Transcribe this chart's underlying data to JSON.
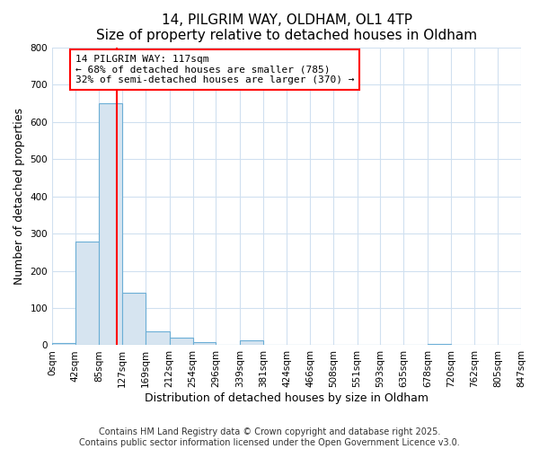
{
  "title1": "14, PILGRIM WAY, OLDHAM, OL1 4TP",
  "title2": "Size of property relative to detached houses in Oldham",
  "xlabel": "Distribution of detached houses by size in Oldham",
  "ylabel": "Number of detached properties",
  "bin_edges": [
    0,
    42,
    85,
    127,
    169,
    212,
    254,
    296,
    339,
    381,
    424,
    466,
    508,
    551,
    593,
    635,
    678,
    720,
    762,
    805,
    847
  ],
  "bin_labels": [
    "0sqm",
    "42sqm",
    "85sqm",
    "127sqm",
    "169sqm",
    "212sqm",
    "254sqm",
    "296sqm",
    "339sqm",
    "381sqm",
    "424sqm",
    "466sqm",
    "508sqm",
    "551sqm",
    "593sqm",
    "635sqm",
    "678sqm",
    "720sqm",
    "762sqm",
    "805sqm",
    "847sqm"
  ],
  "bar_heights": [
    5,
    278,
    650,
    142,
    37,
    20,
    8,
    0,
    12,
    0,
    0,
    0,
    0,
    0,
    0,
    0,
    3,
    0,
    0,
    0
  ],
  "bar_color": "#d6e4f0",
  "bar_edgecolor": "#6baed6",
  "vline_x": 117,
  "vline_color": "red",
  "ylim": [
    0,
    800
  ],
  "yticks": [
    0,
    100,
    200,
    300,
    400,
    500,
    600,
    700,
    800
  ],
  "annotation_text": "14 PILGRIM WAY: 117sqm\n← 68% of detached houses are smaller (785)\n32% of semi-detached houses are larger (370) →",
  "annotation_box_edgecolor": "red",
  "annotation_box_facecolor": "white",
  "footer1": "Contains HM Land Registry data © Crown copyright and database right 2025.",
  "footer2": "Contains public sector information licensed under the Open Government Licence v3.0.",
  "bg_color": "white",
  "grid_color": "#d0e0f0",
  "title_fontsize": 11,
  "axis_label_fontsize": 9,
  "tick_fontsize": 7.5,
  "annotation_fontsize": 8,
  "footer_fontsize": 7
}
